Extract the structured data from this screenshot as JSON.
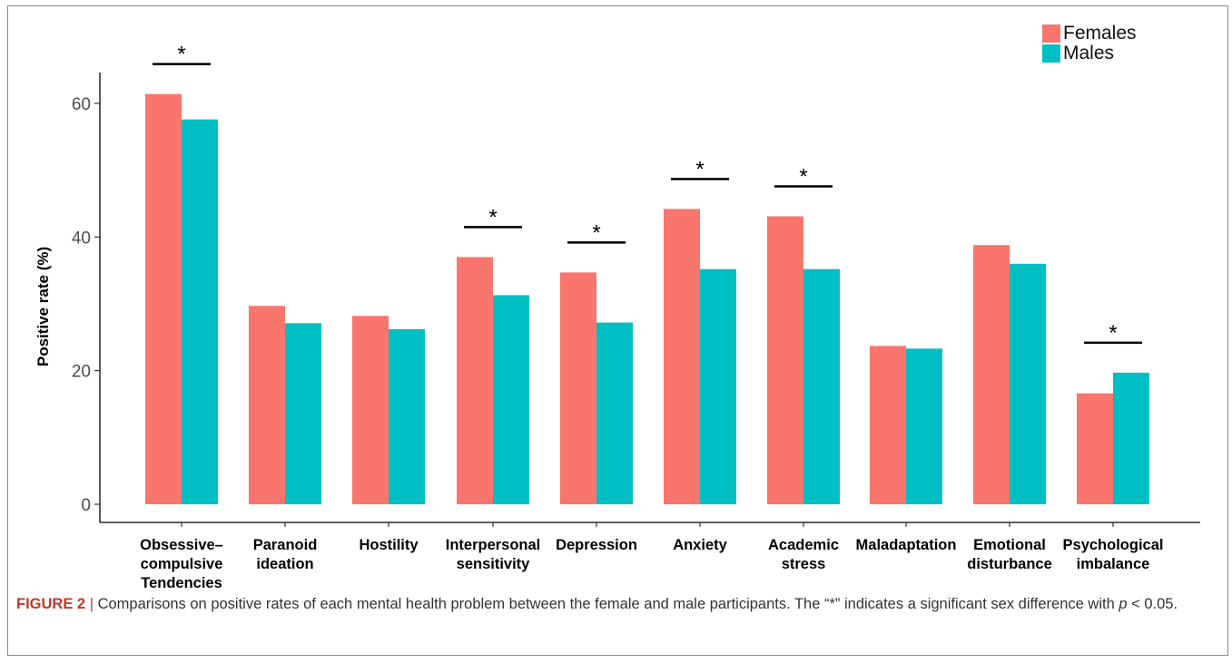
{
  "chart_data": {
    "type": "bar",
    "categories": [
      "Obsessive–compulsive Tendencies",
      "Paranoid ideation",
      "Hostility",
      "Interpersonal sensitivity",
      "Depression",
      "Anxiety",
      "Academic stress",
      "Maladaptation",
      "Emotional disturbance",
      "Psychological imbalance"
    ],
    "category_lines": [
      [
        "Obsessive–",
        "compulsive",
        "Tendencies"
      ],
      [
        "Paranoid",
        "ideation"
      ],
      [
        "Hostility"
      ],
      [
        "Interpersonal",
        "sensitivity"
      ],
      [
        "Depression"
      ],
      [
        "Anxiety"
      ],
      [
        "Academic",
        "stress"
      ],
      [
        "Maladaptation"
      ],
      [
        "Emotional",
        "disturbance"
      ],
      [
        "Psychological",
        "imbalance"
      ]
    ],
    "series": [
      {
        "name": "Females",
        "color": "#F8766D",
        "values": [
          61.4,
          29.7,
          28.2,
          37.0,
          34.7,
          44.2,
          43.1,
          23.7,
          38.8,
          16.6
        ]
      },
      {
        "name": "Males",
        "color": "#00BFC4",
        "values": [
          57.6,
          27.1,
          26.2,
          31.3,
          27.2,
          35.2,
          35.2,
          23.3,
          36.0,
          19.7
        ]
      }
    ],
    "significant": [
      true,
      false,
      false,
      true,
      true,
      true,
      true,
      false,
      false,
      true
    ],
    "significance_marker": "*",
    "ylabel": "Positive rate (%)",
    "xlabel": "",
    "ylim": [
      0,
      65
    ],
    "yticks": [
      0,
      20,
      40,
      60
    ],
    "legend_position": "top-right"
  },
  "caption": {
    "label": "FIGURE 2",
    "separator": "|",
    "text": "Comparisons on positive rates of each mental health problem between the female and male participants. The “*” indicates a significant sex difference with",
    "p_symbol": "p",
    "p_rest": "< 0.05."
  }
}
